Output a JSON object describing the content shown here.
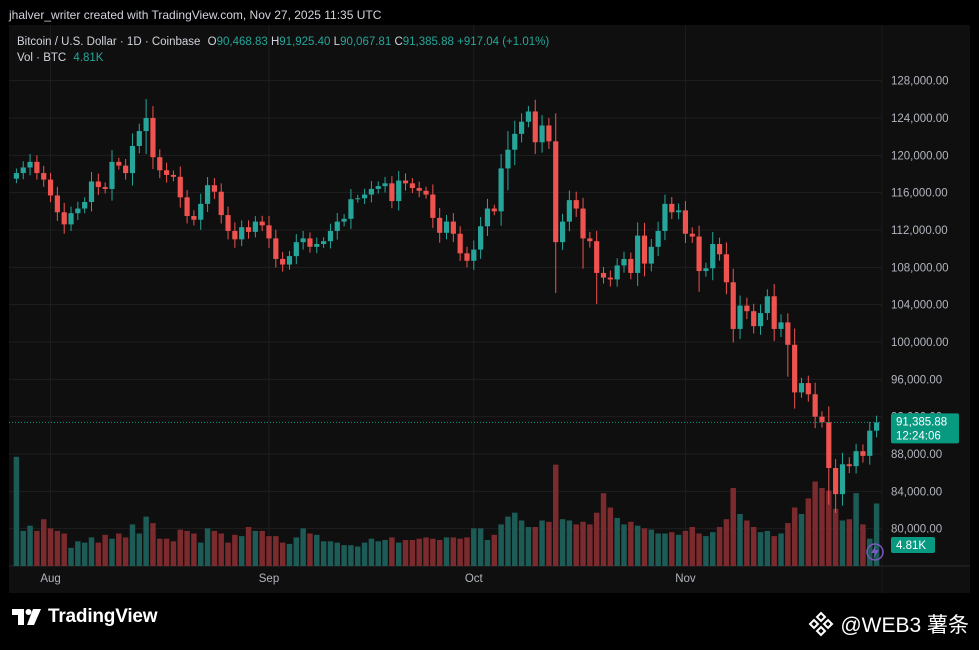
{
  "header": {
    "byline": "jhalver_writer created with TradingView.com, Nov 27, 2025 11:35 UTC"
  },
  "legend": {
    "symbol": "Bitcoin / U.S. Dollar · 1D · Coinbase",
    "open_label": "O",
    "open": "90,468.83",
    "high_label": "H",
    "high": "91,925.40",
    "low_label": "L",
    "low": "90,067.81",
    "close_label": "C",
    "close": "91,385.88",
    "change": "+917.04 (+1.01%)",
    "volume_label": "Vol · BTC",
    "volume_value": "4.81K"
  },
  "chart_data": {
    "type": "candlestick",
    "title": "Bitcoin / U.S. Dollar · 1D · Coinbase",
    "y_axis": {
      "position": "right",
      "min": 76000,
      "max": 130000,
      "ticks": [
        "128,000.00",
        "124,000.00",
        "120,000.00",
        "116,000.00",
        "112,000.00",
        "108,000.00",
        "104,000.00",
        "100,000.00",
        "96,000.00",
        "92,000.00",
        "88,000.00",
        "84,000.00",
        "80,000.00"
      ]
    },
    "x_axis": {
      "labels": [
        "Aug",
        "Sep",
        "Oct",
        "Nov"
      ]
    },
    "grid": true,
    "last_price": "91,385.88",
    "last_price_value": 91385.88,
    "countdown": "12:24:06",
    "volume_badge": "4.81K",
    "colors": {
      "up": "#26a69a",
      "down": "#ef5350",
      "vol_up": "#1d5b57",
      "vol_down": "#7b2a2e",
      "last_price": "#089981"
    },
    "closes": [
      118100,
      118700,
      119300,
      118100,
      117400,
      115700,
      113900,
      112600,
      113800,
      114300,
      115000,
      117200,
      116600,
      116400,
      119300,
      118900,
      118100,
      121000,
      122600,
      124000,
      119800,
      118400,
      117900,
      117700,
      115500,
      113500,
      113100,
      114800,
      116800,
      116100,
      113600,
      111900,
      111000,
      112300,
      111800,
      112900,
      112500,
      111100,
      108900,
      108300,
      109200,
      110700,
      111100,
      110200,
      110500,
      110800,
      111900,
      112900,
      113200,
      115300,
      115400,
      115800,
      116400,
      116700,
      117000,
      115100,
      117300,
      117000,
      116500,
      116200,
      115800,
      113300,
      111700,
      112900,
      111600,
      109500,
      108700,
      109900,
      112400,
      114300,
      114000,
      118600,
      120600,
      122300,
      123600,
      124700,
      121400,
      123200,
      121500,
      110700,
      112900,
      115200,
      114300,
      111100,
      110800,
      107400,
      106900,
      106700,
      108200,
      108900,
      107400,
      111400,
      108400,
      110200,
      111900,
      114800,
      113900,
      114100,
      111600,
      111300,
      107600,
      107900,
      110500,
      109400,
      106400,
      101400,
      103900,
      103300,
      101700,
      103100,
      104900,
      101400,
      102100,
      99700,
      94600,
      95600,
      94400,
      92000,
      91400,
      86500,
      83700,
      86900,
      86700,
      88300,
      87800,
      90500,
      91386
    ],
    "volumes": [
      8.4,
      2.7,
      3.1,
      2.7,
      3.6,
      2.9,
      2.7,
      2.5,
      1.4,
      1.9,
      1.8,
      2.2,
      1.8,
      2.4,
      2.1,
      2.5,
      2.2,
      3.2,
      2.5,
      3.8,
      3.3,
      2.1,
      2.1,
      1.9,
      2.8,
      2.7,
      2.5,
      1.8,
      2.9,
      2.7,
      2.5,
      1.8,
      2.4,
      2.3,
      3.0,
      2.7,
      2.7,
      2.3,
      2.3,
      1.8,
      1.7,
      2.2,
      2.9,
      2.5,
      2.4,
      1.9,
      1.9,
      1.8,
      1.6,
      1.6,
      1.5,
      1.8,
      2.1,
      1.9,
      2.0,
      2.2,
      1.8,
      2.0,
      2.0,
      2.1,
      2.2,
      2.1,
      2.0,
      2.2,
      2.2,
      2.1,
      2.2,
      2.9,
      2.9,
      2.0,
      2.4,
      3.2,
      3.8,
      4.1,
      3.5,
      3.0,
      3.0,
      3.5,
      3.4,
      7.8,
      3.6,
      3.5,
      3.2,
      3.4,
      3.2,
      4.1,
      5.6,
      4.5,
      3.7,
      3.2,
      3.4,
      3.1,
      2.9,
      2.8,
      2.5,
      2.5,
      2.6,
      2.4,
      2.7,
      3.0,
      2.5,
      2.3,
      2.6,
      3.0,
      3.6,
      6.0,
      4.0,
      3.5,
      3.0,
      2.6,
      2.7,
      2.3,
      2.5,
      3.3,
      4.5,
      4.0,
      5.2,
      6.5,
      6.0,
      5.8,
      4.4,
      3.5,
      3.6,
      5.6,
      3.2,
      2.1,
      4.81
    ]
  },
  "branding": {
    "tradingview": "TradingView",
    "watermark": "@WEB3 薯条"
  }
}
